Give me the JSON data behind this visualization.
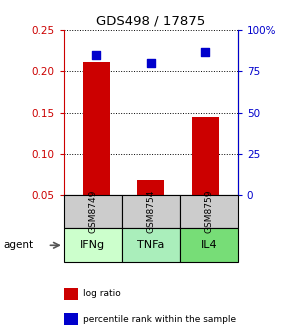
{
  "title": "GDS498 / 17875",
  "categories": [
    "IFNg",
    "TNFa",
    "IL4"
  ],
  "sample_ids": [
    "GSM8749",
    "GSM8754",
    "GSM8759"
  ],
  "log_ratio": [
    0.212,
    0.068,
    0.145
  ],
  "percentile_rank_pct": [
    85,
    80,
    87
  ],
  "bar_color": "#cc0000",
  "dot_color": "#0000cc",
  "left_axis_color": "#cc0000",
  "right_axis_color": "#0000cc",
  "ylim_left": [
    0.05,
    0.25
  ],
  "ylim_right": [
    0,
    100
  ],
  "left_yticks": [
    0.05,
    0.1,
    0.15,
    0.2,
    0.25
  ],
  "right_yticks": [
    0,
    25,
    50,
    75,
    100
  ],
  "right_yticklabels": [
    "0",
    "25",
    "50",
    "75",
    "100%"
  ],
  "cell_color_gray": "#cccccc",
  "cell_colors_bottom": [
    "#ccffcc",
    "#aaeebb",
    "#77dd77"
  ],
  "legend_items": [
    {
      "color": "#cc0000",
      "label": "log ratio"
    },
    {
      "color": "#0000cc",
      "label": "percentile rank within the sample"
    }
  ],
  "bar_width": 0.5,
  "dot_size": 30,
  "bg_color": "#ffffff"
}
